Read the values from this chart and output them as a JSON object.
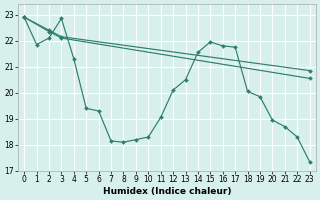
{
  "xlabel": "Humidex (Indice chaleur)",
  "background_color": "#d8f0ec",
  "grid_color": "#ffffff",
  "line_color": "#2e7d6e",
  "xlim": [
    -0.5,
    23.5
  ],
  "ylim": [
    17.0,
    23.4
  ],
  "yticks": [
    17,
    18,
    19,
    20,
    21,
    22,
    23
  ],
  "xticks": [
    0,
    1,
    2,
    3,
    4,
    5,
    6,
    7,
    8,
    9,
    10,
    11,
    12,
    13,
    14,
    15,
    16,
    17,
    18,
    19,
    20,
    21,
    22,
    23
  ],
  "line1_x": [
    0,
    1,
    2,
    3,
    4,
    5,
    6,
    7,
    8,
    9,
    10,
    11,
    12,
    13,
    14,
    15,
    16,
    17,
    18,
    19,
    20,
    21,
    22,
    23
  ],
  "line1_y": [
    22.9,
    21.85,
    22.1,
    22.85,
    21.3,
    19.4,
    19.3,
    18.15,
    18.1,
    18.2,
    18.3,
    19.05,
    20.1,
    20.5,
    21.55,
    21.95,
    21.8,
    21.75,
    20.05,
    19.85,
    18.95,
    18.7,
    18.3,
    17.35
  ],
  "line2_x": [
    0,
    2,
    3,
    23
  ],
  "line2_y": [
    22.9,
    22.4,
    22.15,
    20.85
  ],
  "line3_x": [
    0,
    2,
    3,
    23
  ],
  "line3_y": [
    22.9,
    22.35,
    22.1,
    20.55
  ]
}
